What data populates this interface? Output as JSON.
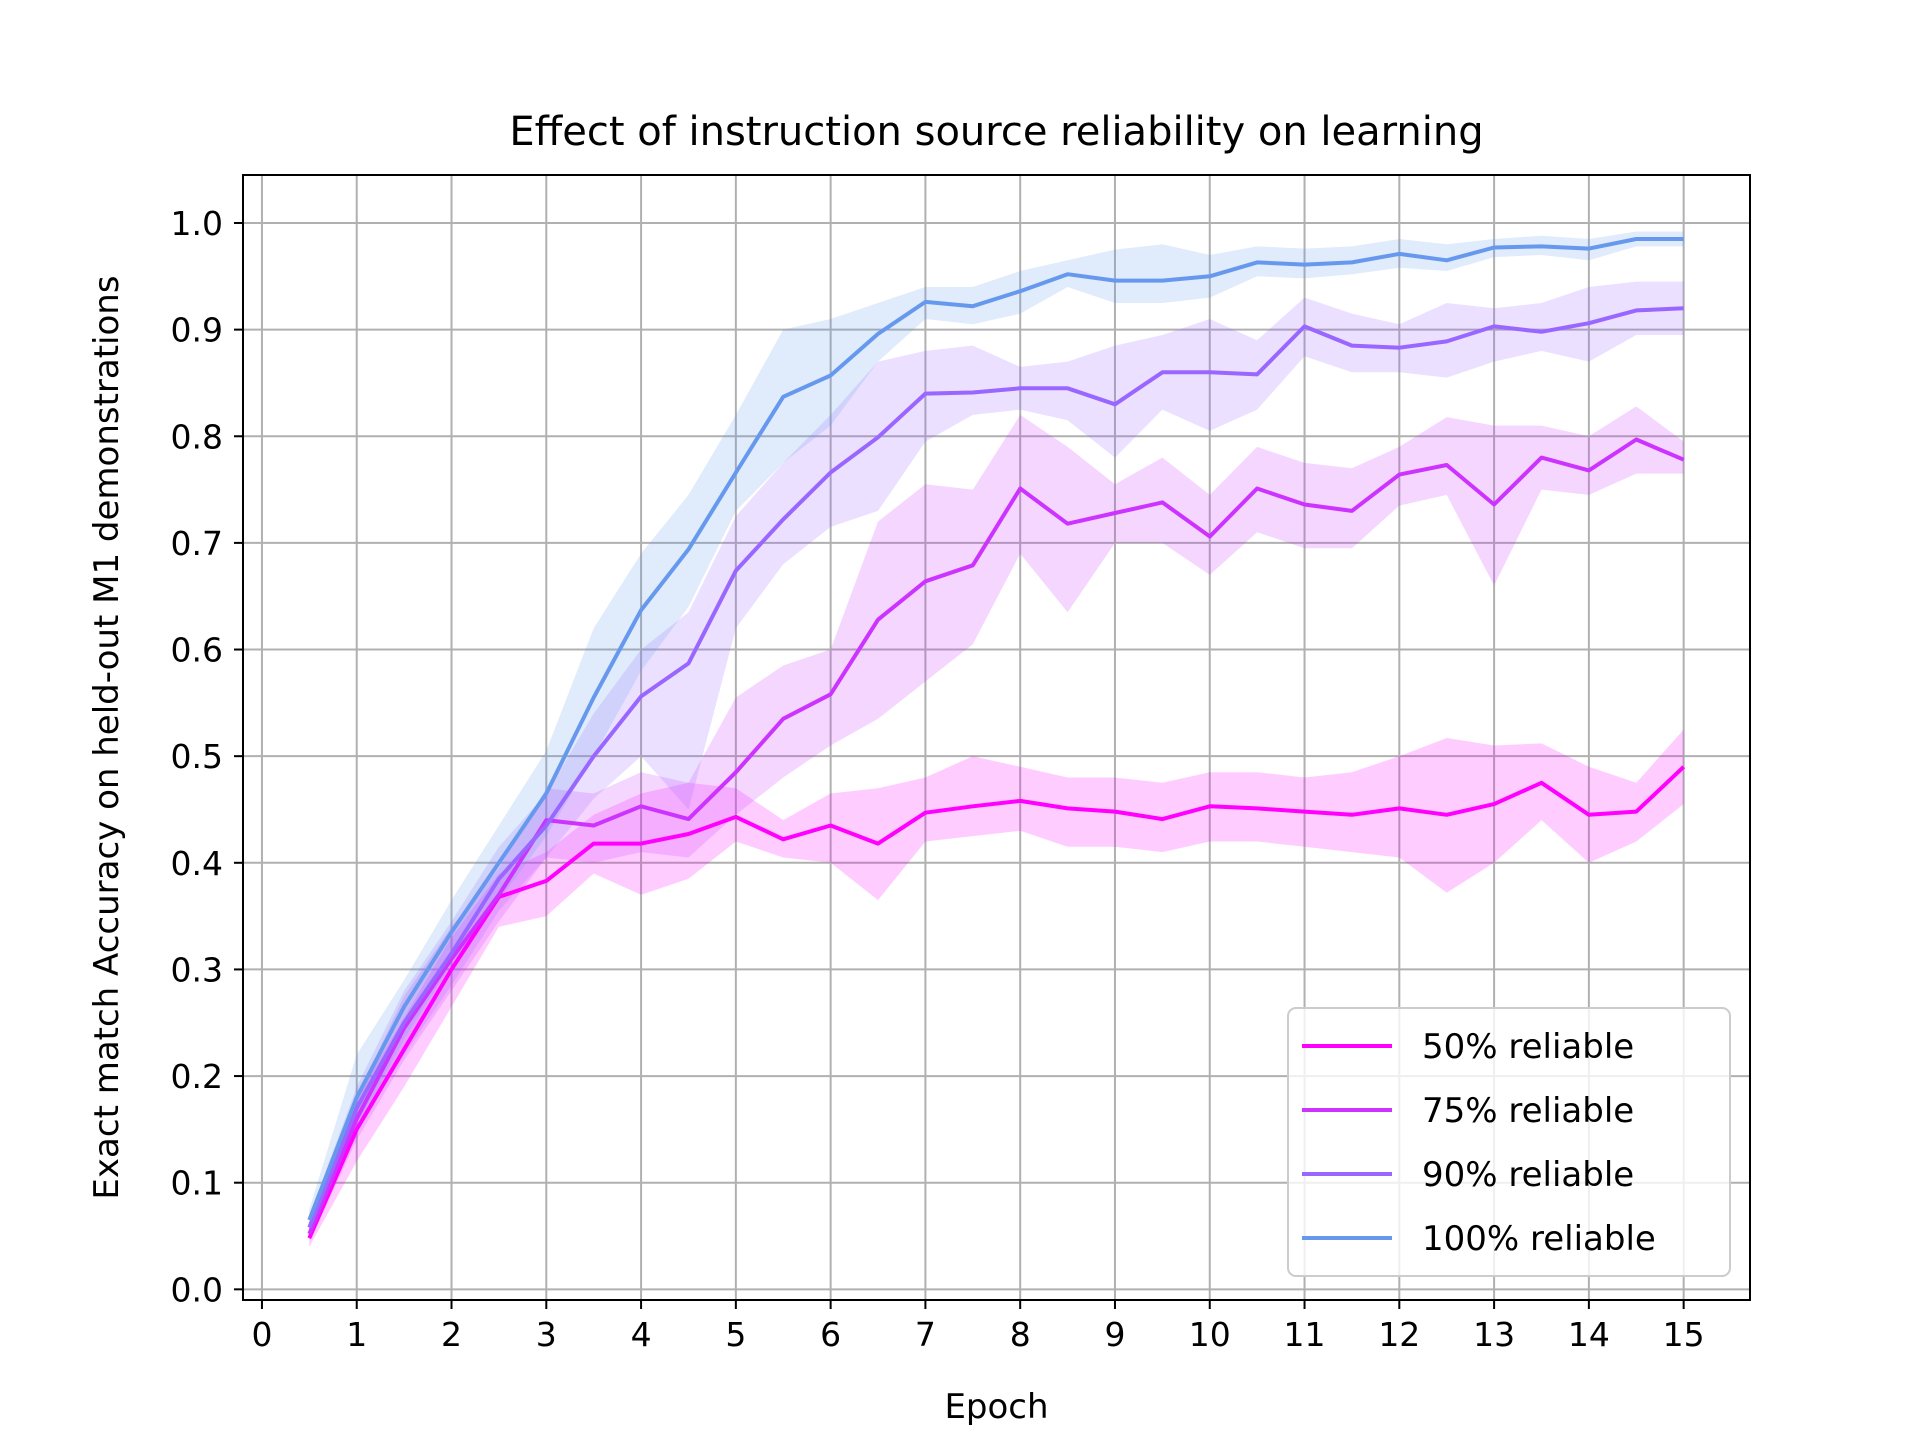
{
  "chart_data": {
    "type": "line",
    "title": "Effect of instruction source reliability on learning",
    "xlabel": "Epoch",
    "ylabel": "Exact match Accuracy on held-out M1 demonstrations",
    "xlim": [
      -0.2,
      15.7
    ],
    "ylim": [
      -0.01,
      1.045
    ],
    "xticks": [
      "0",
      "1",
      "2",
      "3",
      "4",
      "5",
      "6",
      "7",
      "8",
      "9",
      "10",
      "11",
      "12",
      "13",
      "14",
      "15"
    ],
    "yticks": [
      "0.0",
      "0.1",
      "0.2",
      "0.3",
      "0.4",
      "0.5",
      "0.6",
      "0.7",
      "0.8",
      "0.9",
      "1.0"
    ],
    "grid": true,
    "legend_position": "lower-right",
    "x": [
      0.5,
      1,
      1.5,
      2,
      2.5,
      3,
      3.5,
      4,
      4.5,
      5,
      5.5,
      6,
      6.5,
      7,
      7.5,
      8,
      8.5,
      9,
      9.5,
      10,
      10.5,
      11,
      11.5,
      12,
      12.5,
      13,
      13.5,
      14,
      14.5,
      15
    ],
    "series": [
      {
        "name": "50% reliable",
        "color": "#ff00ff",
        "values": [
          0.048,
          0.15,
          0.225,
          0.3,
          0.368,
          0.383,
          0.418,
          0.418,
          0.427,
          0.443,
          0.422,
          0.435,
          0.418,
          0.447,
          0.453,
          0.458,
          0.451,
          0.448,
          0.441,
          0.453,
          0.451,
          0.448,
          0.445,
          0.451,
          0.445,
          0.455,
          0.475,
          0.445,
          0.448,
          0.49
        ],
        "lower": [
          0.04,
          0.12,
          0.19,
          0.265,
          0.34,
          0.35,
          0.39,
          0.37,
          0.385,
          0.42,
          0.405,
          0.4,
          0.365,
          0.42,
          0.425,
          0.43,
          0.415,
          0.415,
          0.41,
          0.42,
          0.42,
          0.415,
          0.41,
          0.405,
          0.372,
          0.4,
          0.44,
          0.4,
          0.42,
          0.455
        ],
        "upper": [
          0.06,
          0.18,
          0.255,
          0.33,
          0.39,
          0.41,
          0.445,
          0.465,
          0.475,
          0.47,
          0.44,
          0.465,
          0.47,
          0.48,
          0.5,
          0.49,
          0.48,
          0.48,
          0.475,
          0.485,
          0.485,
          0.48,
          0.485,
          0.5,
          0.517,
          0.51,
          0.512,
          0.49,
          0.475,
          0.525
        ]
      },
      {
        "name": "75% reliable",
        "color": "#cc33ff",
        "values": [
          0.052,
          0.16,
          0.245,
          0.31,
          0.37,
          0.44,
          0.435,
          0.453,
          0.441,
          0.485,
          0.535,
          0.558,
          0.628,
          0.664,
          0.679,
          0.751,
          0.718,
          0.728,
          0.738,
          0.706,
          0.751,
          0.736,
          0.73,
          0.764,
          0.773,
          0.736,
          0.78,
          0.768,
          0.797,
          0.778
        ],
        "lower": [
          0.045,
          0.14,
          0.215,
          0.28,
          0.345,
          0.405,
          0.4,
          0.41,
          0.405,
          0.445,
          0.48,
          0.51,
          0.535,
          0.57,
          0.605,
          0.69,
          0.635,
          0.7,
          0.7,
          0.67,
          0.71,
          0.695,
          0.695,
          0.735,
          0.745,
          0.66,
          0.75,
          0.745,
          0.765,
          0.765
        ],
        "upper": [
          0.06,
          0.18,
          0.275,
          0.34,
          0.395,
          0.47,
          0.465,
          0.485,
          0.475,
          0.555,
          0.585,
          0.6,
          0.72,
          0.755,
          0.75,
          0.82,
          0.79,
          0.755,
          0.78,
          0.745,
          0.79,
          0.775,
          0.77,
          0.79,
          0.818,
          0.81,
          0.81,
          0.8,
          0.828,
          0.795
        ]
      },
      {
        "name": "90% reliable",
        "color": "#9966ff",
        "values": [
          0.058,
          0.17,
          0.25,
          0.315,
          0.385,
          0.435,
          0.5,
          0.556,
          0.587,
          0.674,
          0.722,
          0.766,
          0.799,
          0.84,
          0.841,
          0.845,
          0.845,
          0.83,
          0.86,
          0.86,
          0.858,
          0.903,
          0.885,
          0.883,
          0.889,
          0.903,
          0.898,
          0.906,
          0.918,
          0.92
        ],
        "lower": [
          0.05,
          0.15,
          0.22,
          0.285,
          0.355,
          0.405,
          0.46,
          0.5,
          0.45,
          0.62,
          0.68,
          0.715,
          0.73,
          0.795,
          0.82,
          0.825,
          0.815,
          0.78,
          0.825,
          0.805,
          0.825,
          0.875,
          0.86,
          0.86,
          0.855,
          0.87,
          0.88,
          0.87,
          0.895,
          0.895
        ],
        "upper": [
          0.068,
          0.19,
          0.28,
          0.345,
          0.415,
          0.465,
          0.54,
          0.6,
          0.635,
          0.725,
          0.775,
          0.82,
          0.87,
          0.88,
          0.885,
          0.865,
          0.87,
          0.885,
          0.895,
          0.91,
          0.89,
          0.93,
          0.915,
          0.905,
          0.925,
          0.92,
          0.925,
          0.94,
          0.945,
          0.945
        ]
      },
      {
        "name": "100% reliable",
        "color": "#6699ee",
        "values": [
          0.065,
          0.18,
          0.265,
          0.335,
          0.4,
          0.465,
          0.555,
          0.637,
          0.694,
          0.766,
          0.837,
          0.857,
          0.896,
          0.926,
          0.922,
          0.936,
          0.952,
          0.946,
          0.946,
          0.95,
          0.963,
          0.961,
          0.963,
          0.971,
          0.965,
          0.977,
          0.978,
          0.976,
          0.985,
          0.985
        ],
        "lower": [
          0.055,
          0.15,
          0.235,
          0.305,
          0.365,
          0.425,
          0.5,
          0.58,
          0.64,
          0.73,
          0.775,
          0.81,
          0.87,
          0.91,
          0.905,
          0.915,
          0.94,
          0.925,
          0.925,
          0.93,
          0.95,
          0.948,
          0.952,
          0.958,
          0.955,
          0.968,
          0.97,
          0.965,
          0.978,
          0.978
        ],
        "upper": [
          0.075,
          0.22,
          0.29,
          0.365,
          0.435,
          0.505,
          0.62,
          0.69,
          0.745,
          0.82,
          0.9,
          0.91,
          0.925,
          0.94,
          0.94,
          0.955,
          0.965,
          0.975,
          0.98,
          0.97,
          0.978,
          0.976,
          0.978,
          0.985,
          0.98,
          0.985,
          0.988,
          0.985,
          0.992,
          0.992
        ]
      }
    ]
  }
}
